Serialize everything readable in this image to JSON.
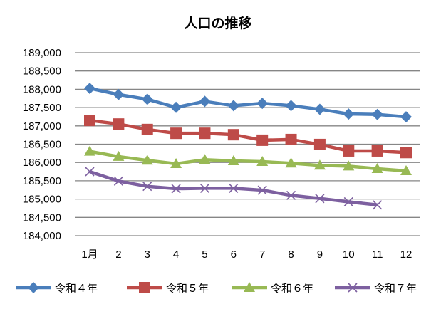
{
  "chart_data": {
    "type": "line",
    "title": "人口の推移",
    "xlabel": "",
    "ylabel": "",
    "categories": [
      "1月",
      "2",
      "3",
      "4",
      "5",
      "6",
      "7",
      "8",
      "9",
      "10",
      "11",
      "12"
    ],
    "ylim": [
      184000,
      189000
    ],
    "yticks": [
      184000,
      184500,
      185000,
      185500,
      186000,
      186500,
      187000,
      187500,
      188000,
      188500,
      189000
    ],
    "ytick_labels": [
      "184,000",
      "184,500",
      "185,000",
      "185,500",
      "186,000",
      "186,500",
      "187,000",
      "187,500",
      "188,000",
      "188,500",
      "189,000"
    ],
    "grid": true,
    "legend_position": "bottom",
    "series": [
      {
        "name": "令和４年",
        "color": "#4A7EBB",
        "marker": "diamond",
        "values": [
          188026,
          187857,
          187727,
          187506,
          187669,
          187552,
          187617,
          187552,
          187454,
          187325,
          187312,
          187247
        ]
      },
      {
        "name": "令和５年",
        "color": "#BE4B48",
        "marker": "square",
        "values": [
          187149,
          187051,
          186902,
          186798,
          186798,
          186759,
          186609,
          186628,
          186492,
          186316,
          186316,
          186271
        ]
      },
      {
        "name": "令和６年",
        "color": "#98B954",
        "marker": "triangle",
        "values": [
          186304,
          186161,
          186057,
          185965,
          186076,
          186044,
          186024,
          185979,
          185920,
          185900,
          185829,
          185771
        ]
      },
      {
        "name": "令和７年",
        "color": "#7D60A0",
        "marker": "x",
        "values": [
          185751,
          185491,
          185348,
          185283,
          185296,
          185296,
          185244,
          185101,
          185016,
          184925,
          184841,
          null
        ]
      }
    ]
  }
}
